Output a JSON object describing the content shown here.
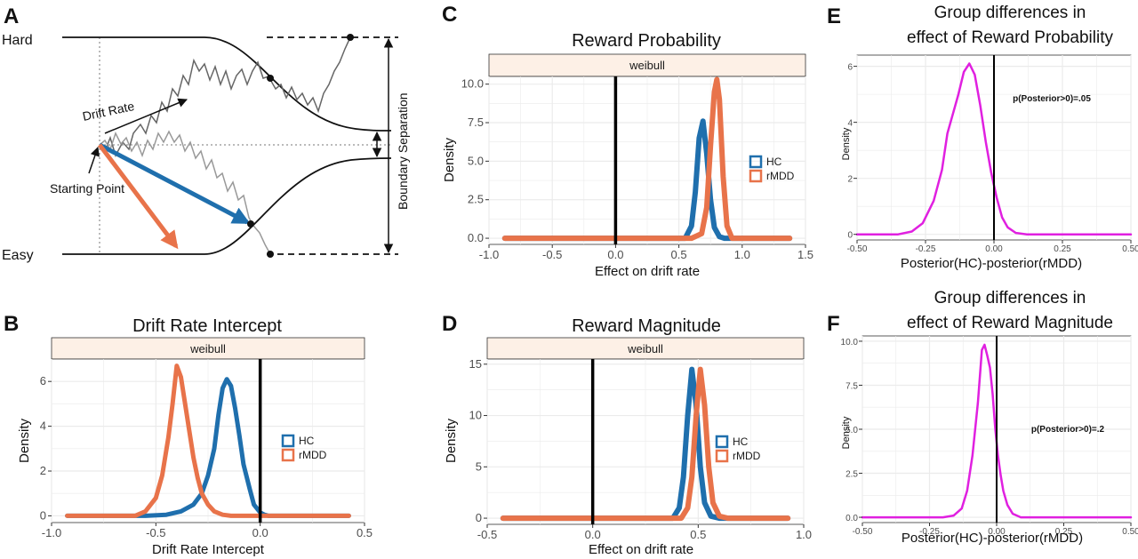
{
  "figure": {
    "panel_letters": [
      "A",
      "B",
      "C",
      "D",
      "E",
      "F"
    ]
  },
  "diagram": {
    "hard_label": "Hard",
    "easy_label": "Easy",
    "drift_rate_label": "Drift Rate",
    "starting_point_label": "Starting Point",
    "boundary_label": "Boundary Separation"
  },
  "colors": {
    "hc": "#1f6fad",
    "rmdd": "#e8734a",
    "magenta": "#e020e0",
    "strip_bg": "#fdf0e6",
    "grid": "#ebebeb"
  },
  "chart_data": [
    {
      "id": "B",
      "type": "line",
      "title": "Drift Rate Intercept",
      "strip": "weibull",
      "xlabel": "Drift Rate Intercept",
      "ylabel": "Density",
      "xlim": [
        -1.0,
        0.5
      ],
      "ylim": [
        -0.3,
        7.0
      ],
      "xticks": [
        -1.0,
        -0.5,
        0.0,
        0.5
      ],
      "xtick_labels": [
        "-1.0",
        "-0.5",
        "0.0",
        "0.5"
      ],
      "yticks": [
        0,
        2,
        4,
        6
      ],
      "ytick_labels": [
        "0",
        "2",
        "4",
        "6"
      ],
      "vline": 0.0,
      "legend": [
        "HC",
        "rMDD"
      ],
      "series": [
        {
          "name": "HC",
          "color": "#1f6fad",
          "x": [
            -0.55,
            -0.45,
            -0.38,
            -0.32,
            -0.28,
            -0.25,
            -0.22,
            -0.2,
            -0.18,
            -0.16,
            -0.14,
            -0.12,
            -0.1,
            -0.08,
            -0.05,
            -0.03,
            0.0,
            0.02,
            0.04
          ],
          "y": [
            0.0,
            0.05,
            0.2,
            0.5,
            1.0,
            1.8,
            3.0,
            4.5,
            5.7,
            6.1,
            5.8,
            4.8,
            3.6,
            2.3,
            1.2,
            0.5,
            0.15,
            0.05,
            0.0
          ]
        },
        {
          "name": "rMDD",
          "color": "#e8734a",
          "x": [
            -0.6,
            -0.55,
            -0.5,
            -0.47,
            -0.44,
            -0.42,
            -0.4,
            -0.38,
            -0.36,
            -0.34,
            -0.32,
            -0.3,
            -0.28,
            -0.25,
            -0.22,
            -0.18,
            -0.14
          ],
          "y": [
            0.0,
            0.2,
            0.8,
            1.8,
            3.5,
            5.0,
            6.7,
            6.2,
            5.0,
            3.8,
            2.6,
            1.7,
            1.0,
            0.5,
            0.2,
            0.05,
            0.0
          ]
        }
      ]
    },
    {
      "id": "C",
      "type": "line",
      "title": "Reward Probability",
      "strip": "weibull",
      "xlabel": "Effect on drift rate",
      "ylabel": "Density",
      "xlim": [
        -1.0,
        1.5
      ],
      "ylim": [
        -0.4,
        10.5
      ],
      "xticks": [
        -1.0,
        -0.5,
        0.0,
        0.5,
        1.0,
        1.5
      ],
      "xtick_labels": [
        "-1.0",
        "-0.5",
        "0.0",
        "0.5",
        "1.0",
        "1.5"
      ],
      "yticks": [
        0.0,
        2.5,
        5.0,
        7.5,
        10.0
      ],
      "ytick_labels": [
        "0.0",
        "2.5",
        "5.0",
        "7.5",
        "10.0"
      ],
      "vline": 0.0,
      "legend": [
        "HC",
        "rMDD"
      ],
      "series": [
        {
          "name": "HC",
          "color": "#1f6fad",
          "x": [
            0.55,
            0.6,
            0.63,
            0.66,
            0.69,
            0.72,
            0.75,
            0.78,
            0.82,
            0.86
          ],
          "y": [
            0.0,
            0.8,
            3.0,
            6.5,
            7.6,
            5.5,
            2.5,
            0.7,
            0.1,
            0.0
          ]
        },
        {
          "name": "rMDD",
          "color": "#e8734a",
          "x": [
            0.6,
            0.68,
            0.72,
            0.75,
            0.78,
            0.8,
            0.82,
            0.85,
            0.88,
            0.92
          ],
          "y": [
            0.0,
            0.3,
            2.0,
            6.0,
            9.5,
            10.3,
            9.0,
            4.0,
            0.8,
            0.0
          ]
        }
      ]
    },
    {
      "id": "D",
      "type": "line",
      "title": "Reward Magnitude",
      "strip": "weibull",
      "xlabel": "Effect on drift rate",
      "ylabel": "Density",
      "xlim": [
        -0.5,
        1.0
      ],
      "ylim": [
        -0.6,
        15.5
      ],
      "xticks": [
        -0.5,
        0.0,
        0.5,
        1.0
      ],
      "xtick_labels": [
        "-0.5",
        "0.0",
        "0.5",
        "1.0"
      ],
      "yticks": [
        0,
        5,
        10,
        15
      ],
      "ytick_labels": [
        "0",
        "5",
        "10",
        "15"
      ],
      "vline": 0.0,
      "legend": [
        "HC",
        "rMDD"
      ],
      "series": [
        {
          "name": "HC",
          "color": "#1f6fad",
          "x": [
            0.38,
            0.41,
            0.43,
            0.45,
            0.47,
            0.49,
            0.51,
            0.53,
            0.56,
            0.6
          ],
          "y": [
            0.0,
            1.0,
            4.0,
            10.0,
            14.5,
            11.0,
            5.0,
            1.5,
            0.2,
            0.0
          ]
        },
        {
          "name": "rMDD",
          "color": "#e8734a",
          "x": [
            0.42,
            0.45,
            0.47,
            0.49,
            0.51,
            0.53,
            0.55,
            0.57,
            0.6,
            0.64
          ],
          "y": [
            0.0,
            1.0,
            4.0,
            10.0,
            14.5,
            11.0,
            5.0,
            1.5,
            0.2,
            0.0
          ]
        }
      ]
    },
    {
      "id": "E",
      "type": "line",
      "title_lines": [
        "Group differences in",
        "effect of Reward Probability"
      ],
      "xlabel": "Posterior(HC)-posterior(rMDD)",
      "ylabel": "Density",
      "xlim": [
        -0.5,
        0.5
      ],
      "ylim": [
        -0.2,
        6.4
      ],
      "xticks": [
        -0.5,
        -0.25,
        0.0,
        0.25,
        0.5
      ],
      "xtick_labels": [
        "-0.50",
        "-0.25",
        "0.00",
        "0.25",
        "0.50"
      ],
      "yticks": [
        0,
        2,
        4,
        6
      ],
      "ytick_labels": [
        "0",
        "2",
        "4",
        "6"
      ],
      "vline": 0.0,
      "annotation": "p(Posterior>0)=.05",
      "series": [
        {
          "name": "difference",
          "color": "#e020e0",
          "x": [
            -0.5,
            -0.35,
            -0.3,
            -0.26,
            -0.22,
            -0.19,
            -0.17,
            -0.15,
            -0.13,
            -0.11,
            -0.09,
            -0.07,
            -0.05,
            -0.03,
            -0.01,
            0.01,
            0.03,
            0.05,
            0.08,
            0.12,
            0.5
          ],
          "y": [
            0.0,
            0.0,
            0.1,
            0.4,
            1.2,
            2.3,
            3.6,
            4.3,
            5.0,
            5.8,
            6.1,
            5.7,
            4.6,
            3.3,
            2.2,
            1.3,
            0.6,
            0.25,
            0.05,
            0.0,
            0.0
          ]
        }
      ]
    },
    {
      "id": "F",
      "type": "line",
      "title_lines": [
        "Group differences in",
        "effect of Reward Magnitude"
      ],
      "xlabel": "Posterior(HC)-posterior(rMDD)",
      "ylabel": "Density",
      "xlim": [
        -0.5,
        0.5
      ],
      "ylim": [
        -0.3,
        10.3
      ],
      "xticks": [
        -0.5,
        -0.25,
        0.0,
        0.25,
        0.5
      ],
      "xtick_labels": [
        "-0.50",
        "-0.25",
        "0.00",
        "0.25",
        "0.50"
      ],
      "yticks": [
        0.0,
        2.5,
        5.0,
        7.5,
        10.0
      ],
      "ytick_labels": [
        "0.0",
        "2.5",
        "5.0",
        "7.5",
        "10.0"
      ],
      "vline": 0.0,
      "annotation": "p(Posterior>0)=.2",
      "series": [
        {
          "name": "difference",
          "color": "#e020e0",
          "x": [
            -0.5,
            -0.2,
            -0.16,
            -0.13,
            -0.11,
            -0.09,
            -0.07,
            -0.055,
            -0.045,
            -0.035,
            -0.025,
            -0.015,
            -0.005,
            0.005,
            0.015,
            0.025,
            0.04,
            0.06,
            0.09,
            0.5
          ],
          "y": [
            0.0,
            0.0,
            0.1,
            0.5,
            1.5,
            3.5,
            6.5,
            9.5,
            9.8,
            9.2,
            8.5,
            7.0,
            5.0,
            3.5,
            2.4,
            1.5,
            0.7,
            0.2,
            0.0,
            0.0
          ]
        }
      ]
    }
  ]
}
